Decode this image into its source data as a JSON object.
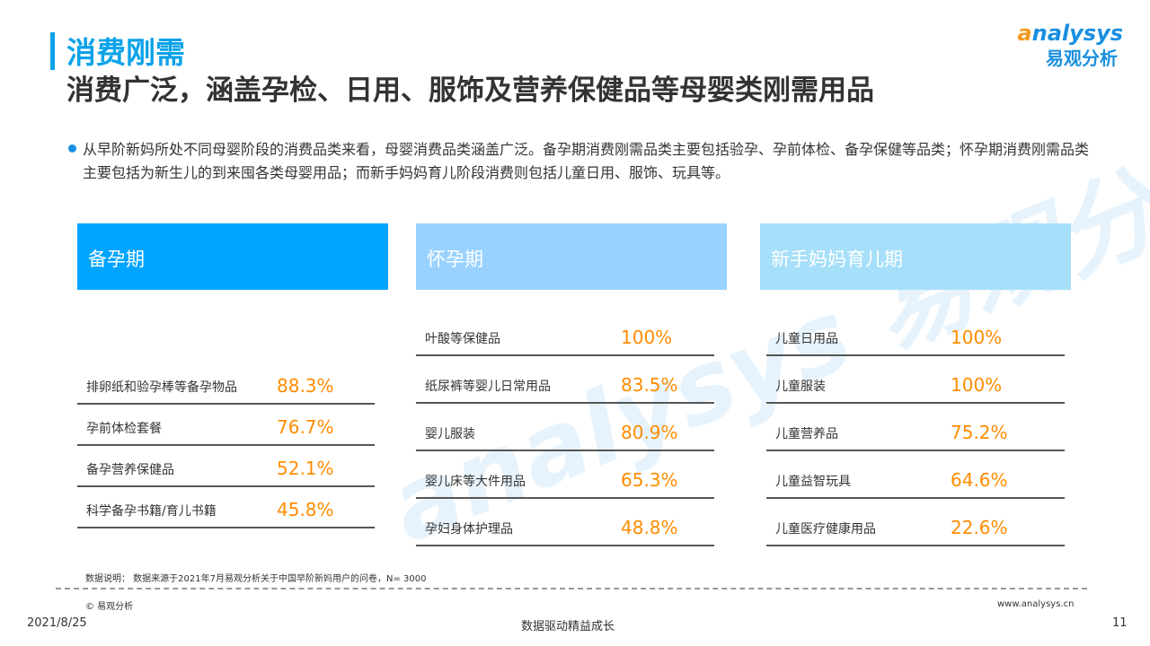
{
  "header": {
    "section": "消费刚需",
    "title": "消费广泛，涵盖孕检、日用、服饰及营养保健品等母婴类刚需用品"
  },
  "logo": {
    "en_prefix": "a",
    "en": "nalysys",
    "cn": "易观分析"
  },
  "description": "从早阶新妈所处不同母婴阶段的消费品类来看，母婴消费品类涵盖广泛。备孕期消费刚需品类主要包括验孕、孕前体检、备孕保健等品类；怀孕期消费刚需品类主要包括为新生儿的到来囤各类母婴用品；而新手妈妈育儿阶段消费则包括儿童日用、服饰、玩具等。",
  "watermark": "analysys 易观分析",
  "colors": {
    "accent": "#0ba2e8",
    "value": "#ff8c00",
    "col1": "#00a5ff",
    "col2": "#99d2ff",
    "col3": "#a6dffa"
  },
  "columns": [
    {
      "title": "备孕期",
      "items": [
        {
          "label": "排卵纸和验孕棒等备孕物品",
          "value": "88.3%"
        },
        {
          "label": "孕前体检套餐",
          "value": "76.7%"
        },
        {
          "label": "备孕营养保健品",
          "value": "52.1%"
        },
        {
          "label": "科学备孕书籍/育儿书籍",
          "value": "45.8%"
        }
      ]
    },
    {
      "title": "怀孕期",
      "items": [
        {
          "label": "叶酸等保健品",
          "value": "100%"
        },
        {
          "label": "纸尿裤等婴儿日常用品",
          "value": "83.5%"
        },
        {
          "label": "婴儿服装",
          "value": "80.9%"
        },
        {
          "label": "婴儿床等大件用品",
          "value": "65.3%"
        },
        {
          "label": "孕妇身体护理品",
          "value": "48.8%"
        }
      ]
    },
    {
      "title": "新手妈妈育儿期",
      "items": [
        {
          "label": "儿童日用品",
          "value": "100%"
        },
        {
          "label": "儿童服装",
          "value": "100%"
        },
        {
          "label": "儿童营养品",
          "value": "75.2%"
        },
        {
          "label": "儿童益智玩具",
          "value": "64.6%"
        },
        {
          "label": "儿童医疗健康用品",
          "value": "22.6%"
        }
      ]
    }
  ],
  "footer": {
    "note": "数据说明：  数据来源于2021年7月易观分析关于中国早阶新妈用户的问卷，N= 3000",
    "copyright": "© 易观分析",
    "website": "www.analysys.cn",
    "date": "2021/8/25",
    "slogan": "数据驱动精益成长",
    "page": "11"
  }
}
